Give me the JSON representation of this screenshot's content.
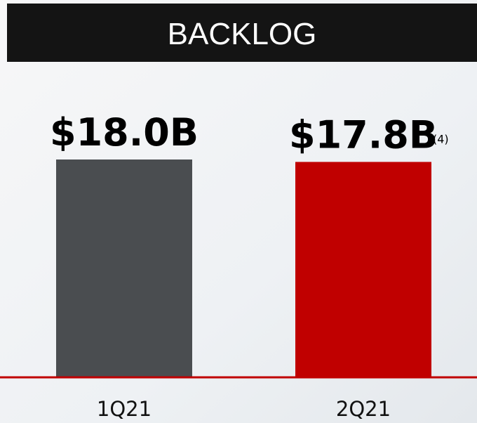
{
  "chart_data": {
    "type": "bar",
    "title": "BACKLOG",
    "categories": [
      "1Q21",
      "2Q21"
    ],
    "values": [
      18.0,
      17.8
    ],
    "value_labels": [
      "$18.0B",
      "$17.8B"
    ],
    "colors": [
      "#4a4d50",
      "#c00000"
    ],
    "annotation": "(4)"
  }
}
